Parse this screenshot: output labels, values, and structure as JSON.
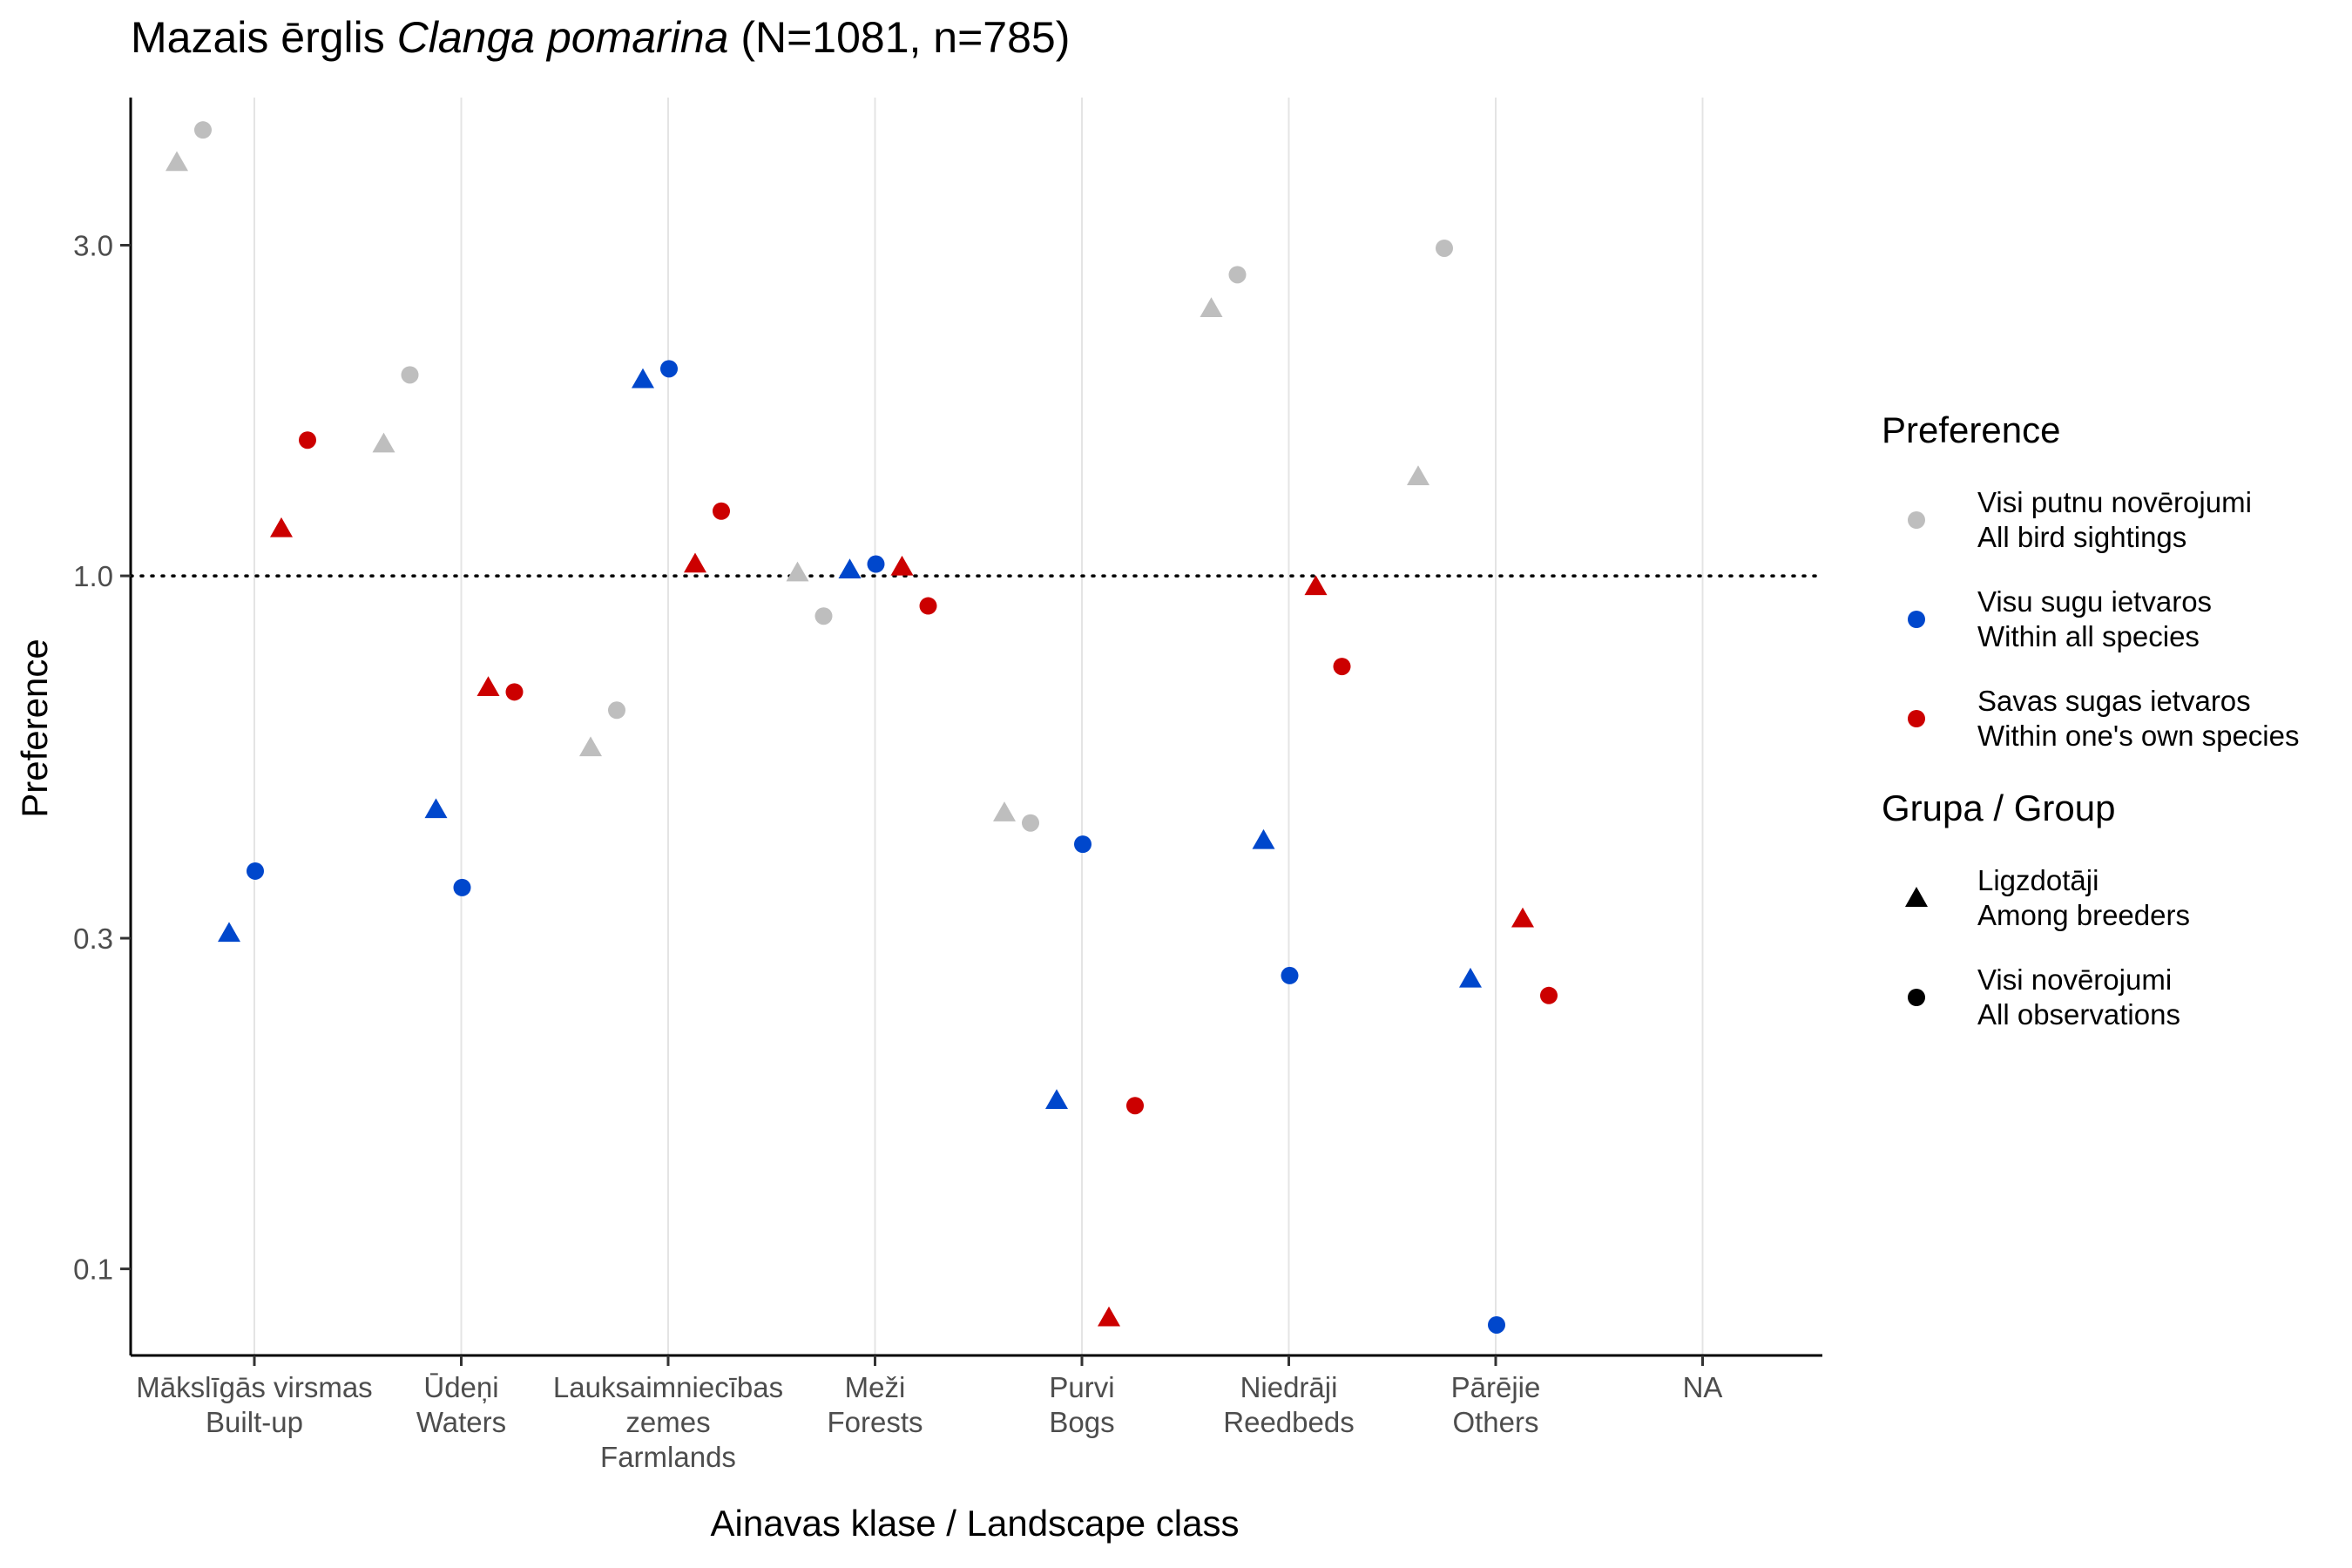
{
  "title": {
    "main": "Mazais ērglis ",
    "species": "Clanga pomarina",
    "counts": " (N=1081, n=785)"
  },
  "chart_data": {
    "type": "scatter",
    "title": "Mazais ērglis Clanga pomarina (N=1081, n=785)",
    "xlabel": "Ainavas klase / Landscape class",
    "ylabel": "Preference",
    "y_scale": "log",
    "ylim": [
      0.075,
      4.9
    ],
    "y_ticks": [
      0.1,
      0.3,
      1.0,
      3.0
    ],
    "y_tick_labels": [
      "0.1",
      "0.3",
      "1.0",
      "3.0"
    ],
    "reference_line": {
      "y": 1.0,
      "style": "dotted"
    },
    "grid": "vertical major lines",
    "legend_position": "right",
    "categories": [
      {
        "lines": [
          "Mākslīgās virsmas",
          "Built-up"
        ]
      },
      {
        "lines": [
          "Ūdeņi",
          "Waters"
        ]
      },
      {
        "lines": [
          "Lauksaimniecības",
          "zemes",
          "Farmlands"
        ]
      },
      {
        "lines": [
          "Meži",
          "Forests"
        ]
      },
      {
        "lines": [
          "Purvi",
          "Bogs"
        ]
      },
      {
        "lines": [
          "Niedrāji",
          "Reedbeds"
        ]
      },
      {
        "lines": [
          "Pārējie",
          "Others"
        ]
      },
      {
        "lines": [
          "NA"
        ]
      }
    ],
    "preference_series": [
      {
        "key": "all_bird_sightings",
        "color": "#BEBEBE",
        "lines": [
          "Visi putnu novērojumi",
          "All bird sightings"
        ]
      },
      {
        "key": "within_all_species",
        "color": "#0047CC",
        "lines": [
          "Visu sugu ietvaros",
          "Within all species"
        ]
      },
      {
        "key": "within_own_species",
        "color": "#CC0000",
        "lines": [
          "Savas sugas ietvaros",
          "Within one's own species"
        ]
      }
    ],
    "group_series": [
      {
        "key": "breeders",
        "shape": "triangle",
        "lines": [
          "Ligzdotāji",
          "Among breeders"
        ]
      },
      {
        "key": "all_observations",
        "shape": "circle",
        "lines": [
          "Visi novērojumi",
          "All observations"
        ]
      }
    ],
    "legend_titles": {
      "preference": "Preference",
      "group": "Grupa / Group"
    },
    "points": [
      {
        "category": 0,
        "preference": "all_bird_sightings",
        "group": "breeders",
        "value": 3.95
      },
      {
        "category": 0,
        "preference": "all_bird_sightings",
        "group": "all_observations",
        "value": 4.4
      },
      {
        "category": 0,
        "preference": "within_all_species",
        "group": "breeders",
        "value": 0.305
      },
      {
        "category": 0,
        "preference": "within_all_species",
        "group": "all_observations",
        "value": 0.375
      },
      {
        "category": 0,
        "preference": "within_own_species",
        "group": "breeders",
        "value": 1.17
      },
      {
        "category": 0,
        "preference": "within_own_species",
        "group": "all_observations",
        "value": 1.57
      },
      {
        "category": 1,
        "preference": "all_bird_sightings",
        "group": "breeders",
        "value": 1.55
      },
      {
        "category": 1,
        "preference": "all_bird_sightings",
        "group": "all_observations",
        "value": 1.95
      },
      {
        "category": 1,
        "preference": "within_all_species",
        "group": "breeders",
        "value": 0.46
      },
      {
        "category": 1,
        "preference": "within_all_species",
        "group": "all_observations",
        "value": 0.355
      },
      {
        "category": 1,
        "preference": "within_own_species",
        "group": "breeders",
        "value": 0.69
      },
      {
        "category": 1,
        "preference": "within_own_species",
        "group": "all_observations",
        "value": 0.68
      },
      {
        "category": 2,
        "preference": "all_bird_sightings",
        "group": "breeders",
        "value": 0.565
      },
      {
        "category": 2,
        "preference": "all_bird_sightings",
        "group": "all_observations",
        "value": 0.64
      },
      {
        "category": 2,
        "preference": "within_all_species",
        "group": "breeders",
        "value": 1.92
      },
      {
        "category": 2,
        "preference": "within_all_species",
        "group": "all_observations",
        "value": 1.99
      },
      {
        "category": 2,
        "preference": "within_own_species",
        "group": "breeders",
        "value": 1.04
      },
      {
        "category": 2,
        "preference": "within_own_species",
        "group": "all_observations",
        "value": 1.24
      },
      {
        "category": 3,
        "preference": "all_bird_sightings",
        "group": "breeders",
        "value": 1.01
      },
      {
        "category": 3,
        "preference": "all_bird_sightings",
        "group": "all_observations",
        "value": 0.875
      },
      {
        "category": 3,
        "preference": "within_all_species",
        "group": "breeders",
        "value": 1.02
      },
      {
        "category": 3,
        "preference": "within_all_species",
        "group": "all_observations",
        "value": 1.04
      },
      {
        "category": 3,
        "preference": "within_own_species",
        "group": "breeders",
        "value": 1.03
      },
      {
        "category": 3,
        "preference": "within_own_species",
        "group": "all_observations",
        "value": 0.905
      },
      {
        "category": 4,
        "preference": "all_bird_sightings",
        "group": "breeders",
        "value": 0.455
      },
      {
        "category": 4,
        "preference": "all_bird_sightings",
        "group": "all_observations",
        "value": 0.44
      },
      {
        "category": 4,
        "preference": "within_all_species",
        "group": "breeders",
        "value": 0.175
      },
      {
        "category": 4,
        "preference": "within_all_species",
        "group": "all_observations",
        "value": 0.41
      },
      {
        "category": 4,
        "preference": "within_own_species",
        "group": "breeders",
        "value": 0.085
      },
      {
        "category": 4,
        "preference": "within_own_species",
        "group": "all_observations",
        "value": 0.172
      },
      {
        "category": 5,
        "preference": "all_bird_sightings",
        "group": "breeders",
        "value": 2.43
      },
      {
        "category": 5,
        "preference": "all_bird_sightings",
        "group": "all_observations",
        "value": 2.72
      },
      {
        "category": 5,
        "preference": "within_all_species",
        "group": "breeders",
        "value": 0.415
      },
      {
        "category": 5,
        "preference": "within_all_species",
        "group": "all_observations",
        "value": 0.265
      },
      {
        "category": 5,
        "preference": "within_own_species",
        "group": "breeders",
        "value": 0.965
      },
      {
        "category": 5,
        "preference": "within_own_species",
        "group": "all_observations",
        "value": 0.74
      },
      {
        "category": 6,
        "preference": "all_bird_sightings",
        "group": "breeders",
        "value": 1.39
      },
      {
        "category": 6,
        "preference": "all_bird_sightings",
        "group": "all_observations",
        "value": 2.97
      },
      {
        "category": 6,
        "preference": "within_all_species",
        "group": "breeders",
        "value": 0.262
      },
      {
        "category": 6,
        "preference": "within_all_species",
        "group": "all_observations",
        "value": 0.083
      },
      {
        "category": 6,
        "preference": "within_own_species",
        "group": "breeders",
        "value": 0.32
      },
      {
        "category": 6,
        "preference": "within_own_species",
        "group": "all_observations",
        "value": 0.248
      }
    ]
  }
}
